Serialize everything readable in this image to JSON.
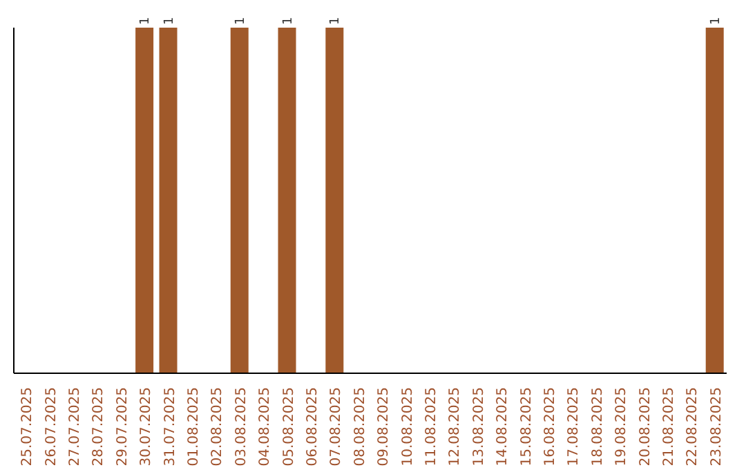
{
  "chart_data": {
    "type": "bar",
    "categories": [
      "25.07.2025",
      "26.07.2025",
      "27.07.2025",
      "28.07.2025",
      "29.07.2025",
      "30.07.2025",
      "31.07.2025",
      "01.08.2025",
      "02.08.2025",
      "03.08.2025",
      "04.08.2025",
      "05.08.2025",
      "06.08.2025",
      "07.08.2025",
      "08.08.2025",
      "09.08.2025",
      "10.08.2025",
      "11.08.2025",
      "12.08.2025",
      "13.08.2025",
      "14.08.2025",
      "15.08.2025",
      "16.08.2025",
      "17.08.2025",
      "18.08.2025",
      "19.08.2025",
      "20.08.2025",
      "21.08.2025",
      "22.08.2025",
      "23.08.2025"
    ],
    "values": [
      0,
      0,
      0,
      0,
      0,
      1,
      1,
      0,
      0,
      1,
      0,
      1,
      0,
      1,
      0,
      0,
      0,
      0,
      0,
      0,
      0,
      0,
      0,
      0,
      0,
      0,
      0,
      0,
      0,
      1
    ],
    "value_labels": [
      null,
      null,
      null,
      null,
      null,
      "1",
      "1",
      null,
      null,
      "1",
      null,
      "1",
      null,
      "1",
      null,
      null,
      null,
      null,
      null,
      null,
      null,
      null,
      null,
      null,
      null,
      null,
      null,
      null,
      null,
      "1"
    ],
    "color": "#a0592a",
    "ylim": [
      0,
      1
    ],
    "tick_labels": "x",
    "grid": false
  }
}
